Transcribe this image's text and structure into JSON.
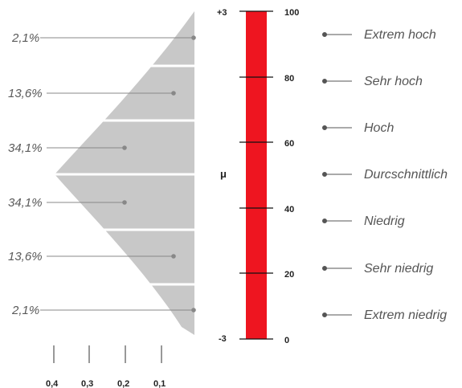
{
  "percentages": [
    "2,1%",
    "13,6%",
    "34,1%",
    "34,1%",
    "13,6%",
    "2,1%"
  ],
  "density_axis": {
    "ticks": [
      "0,4",
      "0,3",
      "0,2",
      "0,1"
    ]
  },
  "sigma_scale": {
    "top": "+3",
    "mean": "μ",
    "bottom": "-3"
  },
  "score_scale": {
    "ticks": [
      "100",
      "80",
      "60",
      "40",
      "20",
      "0"
    ]
  },
  "categories": [
    "Extrem hoch",
    "Sehr hoch",
    "Hoch",
    "Durcschnittlich",
    "Niedrig",
    "Sehr niedrig",
    "Extrem niedrig"
  ],
  "colors": {
    "bar": "#ee1520",
    "curve_fill": "#c8c8c8",
    "line": "#888888",
    "text": "#555555",
    "bar_tick": "#111111"
  }
}
